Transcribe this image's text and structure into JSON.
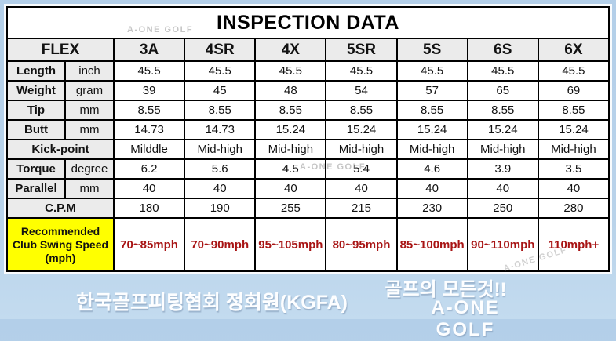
{
  "title": "INSPECTION DATA",
  "watermark": "A-ONE GOLF",
  "colors": {
    "page_background": "#b9d3ea",
    "cell_gray": "#ebebeb",
    "highlight_yellow": "#ffff00",
    "speed_red": "#a81414",
    "border_black": "#000000"
  },
  "table": {
    "flex_label": "FLEX",
    "columns": [
      "3A",
      "4SR",
      "4X",
      "5SR",
      "5S",
      "6S",
      "6X"
    ],
    "rows": [
      {
        "label": "Length",
        "unit": "inch",
        "values": [
          "45.5",
          "45.5",
          "45.5",
          "45.5",
          "45.5",
          "45.5",
          "45.5"
        ]
      },
      {
        "label": "Weight",
        "unit": "gram",
        "values": [
          "39",
          "45",
          "48",
          "54",
          "57",
          "65",
          "69"
        ]
      },
      {
        "label": "Tip",
        "unit": "mm",
        "values": [
          "8.55",
          "8.55",
          "8.55",
          "8.55",
          "8.55",
          "8.55",
          "8.55"
        ]
      },
      {
        "label": "Butt",
        "unit": "mm",
        "values": [
          "14.73",
          "14.73",
          "15.24",
          "15.24",
          "15.24",
          "15.24",
          "15.24"
        ]
      },
      {
        "label": "Kick-point",
        "unit": null,
        "values": [
          "Milddle",
          "Mid-high",
          "Mid-high",
          "Mid-high",
          "Mid-high",
          "Mid-high",
          "Mid-high"
        ]
      },
      {
        "label": "Torque",
        "unit": "degree",
        "values": [
          "6.2",
          "5.6",
          "4.5",
          "5.4",
          "4.6",
          "3.9",
          "3.5"
        ]
      },
      {
        "label": "Parallel",
        "unit": "mm",
        "values": [
          "40",
          "40",
          "40",
          "40",
          "40",
          "40",
          "40"
        ]
      },
      {
        "label": "C.P.M",
        "unit": null,
        "values": [
          "180",
          "190",
          "255",
          "215",
          "230",
          "250",
          "280"
        ]
      }
    ],
    "speed_row": {
      "label_lines": [
        "Recommended",
        "Club Swing Speed",
        "(mph)"
      ],
      "values": [
        "70~85mph",
        "70~90mph",
        "95~105mph",
        "80~95mph",
        "85~100mph",
        "90~110mph",
        "110mph+"
      ]
    }
  },
  "footer": {
    "left": "한국골프피팅협회 정회원(KGFA)",
    "right_top": "골프의 모든것!!",
    "right_bottom": "A-ONE GOLF"
  }
}
